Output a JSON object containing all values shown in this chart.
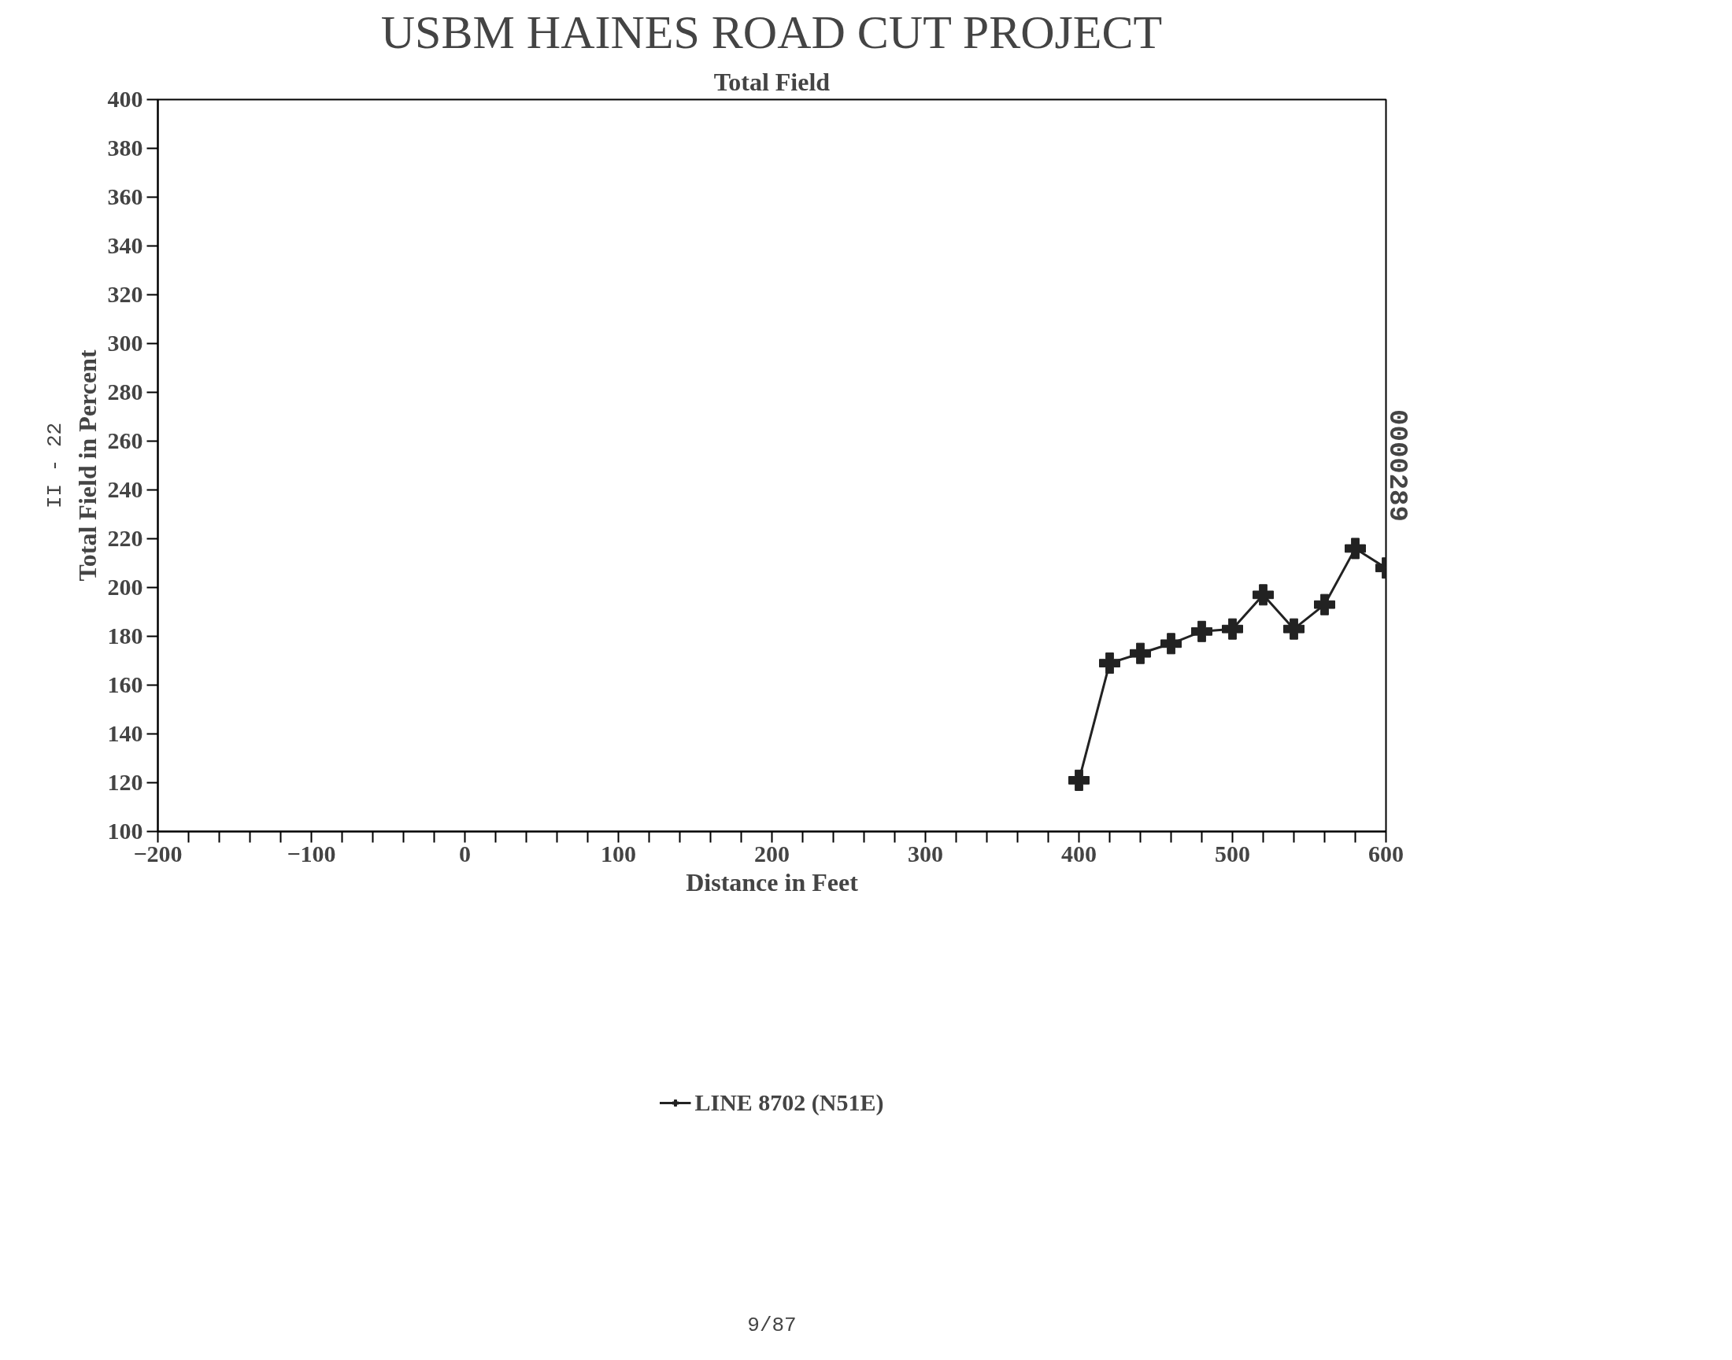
{
  "chart_data": {
    "type": "line",
    "title": "USBM HAINES ROAD CUT PROJECT",
    "subtitle": "Total Field",
    "xlabel": "Distance in Feet",
    "ylabel": "Total Field in Percent",
    "x": [
      400,
      420,
      440,
      460,
      480,
      500,
      520,
      540,
      560,
      580,
      600
    ],
    "series": [
      {
        "name": "LINE 8702 (N51E)",
        "color": "#222222",
        "values": [
          121,
          169,
          173,
          177,
          182,
          183,
          197,
          183,
          193,
          216,
          208
        ]
      }
    ],
    "xlim": [
      -200,
      600
    ],
    "ylim": [
      100,
      400
    ],
    "xticks": [
      -200,
      {
        "value": -180,
        "label": null
      },
      {
        "value": -160,
        "label": null
      },
      {
        "value": -140,
        "label": null
      },
      {
        "value": -120,
        "label": null
      },
      -100,
      {
        "value": -80,
        "label": null
      },
      {
        "value": -60,
        "label": null
      },
      {
        "value": -40,
        "label": null
      },
      {
        "value": -20,
        "label": null
      },
      0,
      {
        "value": 20,
        "label": null
      },
      {
        "value": 40,
        "label": null
      },
      {
        "value": 60,
        "label": null
      },
      {
        "value": 80,
        "label": null
      },
      100,
      {
        "value": 120,
        "label": null
      },
      {
        "value": 140,
        "label": null
      },
      {
        "value": 160,
        "label": null
      },
      {
        "value": 180,
        "label": null
      },
      200,
      {
        "value": 220,
        "label": null
      },
      {
        "value": 240,
        "label": null
      },
      {
        "value": 260,
        "label": null
      },
      {
        "value": 280,
        "label": null
      },
      300,
      {
        "value": 320,
        "label": null
      },
      {
        "value": 340,
        "label": null
      },
      {
        "value": 360,
        "label": null
      },
      {
        "value": 380,
        "label": null
      },
      400,
      {
        "value": 420,
        "label": null
      },
      {
        "value": 440,
        "label": null
      },
      {
        "value": 460,
        "label": null
      },
      {
        "value": 480,
        "label": null
      },
      500,
      {
        "value": 520,
        "label": null
      },
      {
        "value": 540,
        "label": null
      },
      {
        "value": 560,
        "label": null
      },
      {
        "value": 580,
        "label": null
      },
      600
    ],
    "yticks": [
      100,
      120,
      140,
      160,
      180,
      200,
      220,
      240,
      260,
      280,
      300,
      320,
      340,
      360,
      380,
      400
    ],
    "grid": false,
    "legend": "bottom",
    "marker": "cross",
    "line_style": "solid",
    "annotations": [
      "9/87",
      "II - 22",
      "0000289"
    ]
  }
}
